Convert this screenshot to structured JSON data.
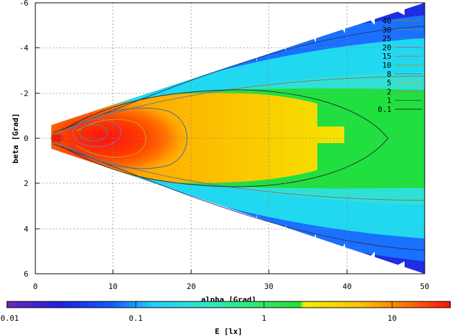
{
  "chart_data": {
    "type": "heatmap",
    "title": "",
    "xlabel": "alpha [Grad]",
    "ylabel": "beta [Grad]",
    "xlim": [
      0,
      50
    ],
    "ylim": [
      6,
      -6
    ],
    "x_ticks": [
      "0",
      "10",
      "20",
      "30",
      "40",
      "50"
    ],
    "y_ticks": [
      "-6",
      "-4",
      "-2",
      "0",
      "2",
      "4",
      "6"
    ],
    "grid": true,
    "legend_placement": "top-right",
    "contour_levels": [
      {
        "label": "40",
        "color": "#6e8f2a"
      },
      {
        "label": "30",
        "color": "#3a9a8c"
      },
      {
        "label": "25",
        "color": "#2b8fcf"
      },
      {
        "label": "20",
        "color": "#8e6fa8"
      },
      {
        "label": "15",
        "color": "#c0704a"
      },
      {
        "label": "10",
        "color": "#9ca12a"
      },
      {
        "label": "8",
        "color": "#3478c8"
      },
      {
        "label": "5",
        "color": "#c4a82a"
      },
      {
        "label": "2",
        "color": "#7f8a96"
      },
      {
        "label": "1",
        "color": "#355a3a"
      },
      {
        "label": "0.1",
        "color": "#2a2a2a"
      }
    ],
    "colorbar": {
      "label": "E [lx]",
      "scale": "log",
      "min": 0.01,
      "max": 14,
      "tick_labels": [
        "0.01",
        "0.1",
        "1",
        "10"
      ]
    },
    "regions": [
      {
        "level": "0.01–0.1",
        "extent": "outer wedge edges",
        "color": "#1e2ee0"
      },
      {
        "level": "0.1–1",
        "extent": "wedge, beta beyond ±2.5",
        "color": "#20d8f0"
      },
      {
        "level": "1–3",
        "extent": "alpha 0–50, beta ±2.5",
        "color": "#20e040"
      },
      {
        "level": "3–10",
        "extent": "alpha 2–40, beta ±2",
        "color": "#f0e000"
      },
      {
        "level": ">10",
        "extent": "alpha 2–18, beta ±1",
        "color": "#f02010"
      }
    ]
  }
}
